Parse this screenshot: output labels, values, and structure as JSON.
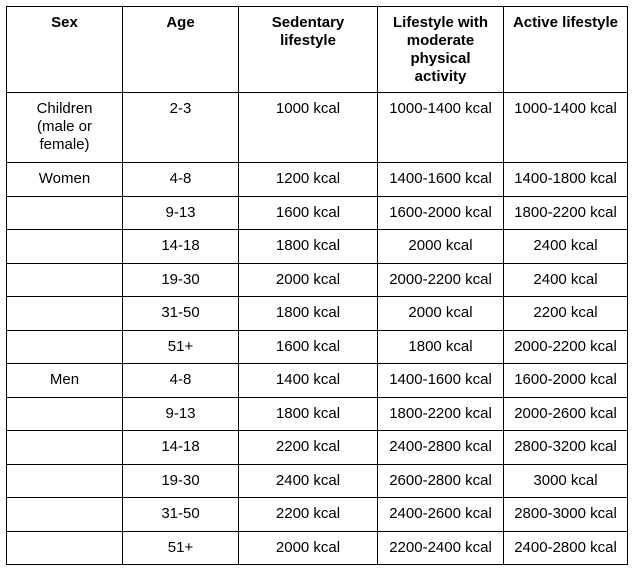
{
  "table": {
    "header": [
      "Sex",
      "Age",
      "Sedentary lifestyle",
      "Lifestyle with moderate physical activity",
      "Active lifestyle"
    ],
    "rows": [
      [
        "Children (male or female)",
        "2-3",
        "1000 kcal",
        "1000-1400 kcal",
        "1000-1400 kcal"
      ],
      [
        "Women",
        "4-8",
        "1200 kcal",
        "1400-1600 kcal",
        "1400-1800 kcal"
      ],
      [
        null,
        "9-13",
        "1600 kcal",
        "1600-2000 kcal",
        "1800-2200 kcal"
      ],
      [
        null,
        "14-18",
        "1800 kcal",
        "2000 kcal",
        "2400 kcal"
      ],
      [
        null,
        "19-30",
        "2000 kcal",
        "2000-2200 kcal",
        "2400 kcal"
      ],
      [
        null,
        "31-50",
        "1800 kcal",
        "2000 kcal",
        "2200 kcal"
      ],
      [
        null,
        "51+",
        "1600 kcal",
        "1800 kcal",
        "2000-2200 kcal"
      ],
      [
        "Men",
        "4-8",
        "1400 kcal",
        "1400-1600 kcal",
        "1600-2000 kcal"
      ],
      [
        null,
        "9-13",
        "1800 kcal",
        "1800-2200 kcal",
        "2000-2600 kcal"
      ],
      [
        null,
        "14-18",
        "2200 kcal",
        "2400-2800 kcal",
        "2800-3200 kcal"
      ],
      [
        null,
        "19-30",
        "2400 kcal",
        "2600-2800 kcal",
        "3000 kcal"
      ],
      [
        null,
        "31-50",
        "2200 kcal",
        "2400-2600 kcal",
        "2800-3000 kcal"
      ],
      [
        null,
        "51+",
        "2000 kcal",
        "2200-2400 kcal",
        "2400-2800 kcal"
      ]
    ]
  }
}
